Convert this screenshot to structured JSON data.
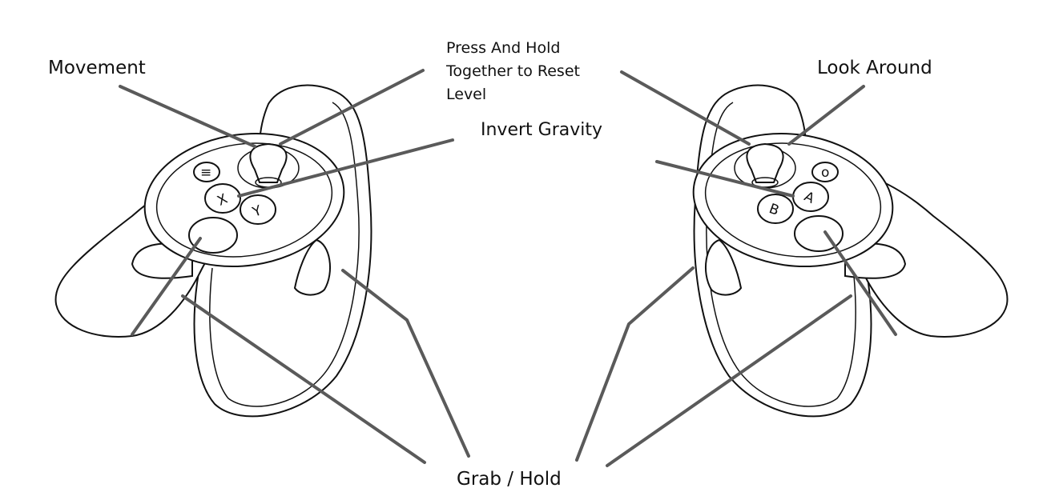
{
  "labels": {
    "movement": "Movement",
    "reset_line1": "Press And Hold",
    "reset_line2": "Together to Reset",
    "reset_line3": "Level",
    "invert_gravity": "Invert Gravity",
    "look_around": "Look Around",
    "grab_hold": "Grab / Hold"
  },
  "left_controller_buttons": {
    "menu": "≡",
    "x": "X",
    "y": "Y"
  },
  "right_controller_buttons": {
    "oculus": "o",
    "a": "A",
    "b": "B"
  },
  "colors": {
    "leader_line": "#5a5a5a",
    "outline": "#111111",
    "background": "#ffffff"
  }
}
